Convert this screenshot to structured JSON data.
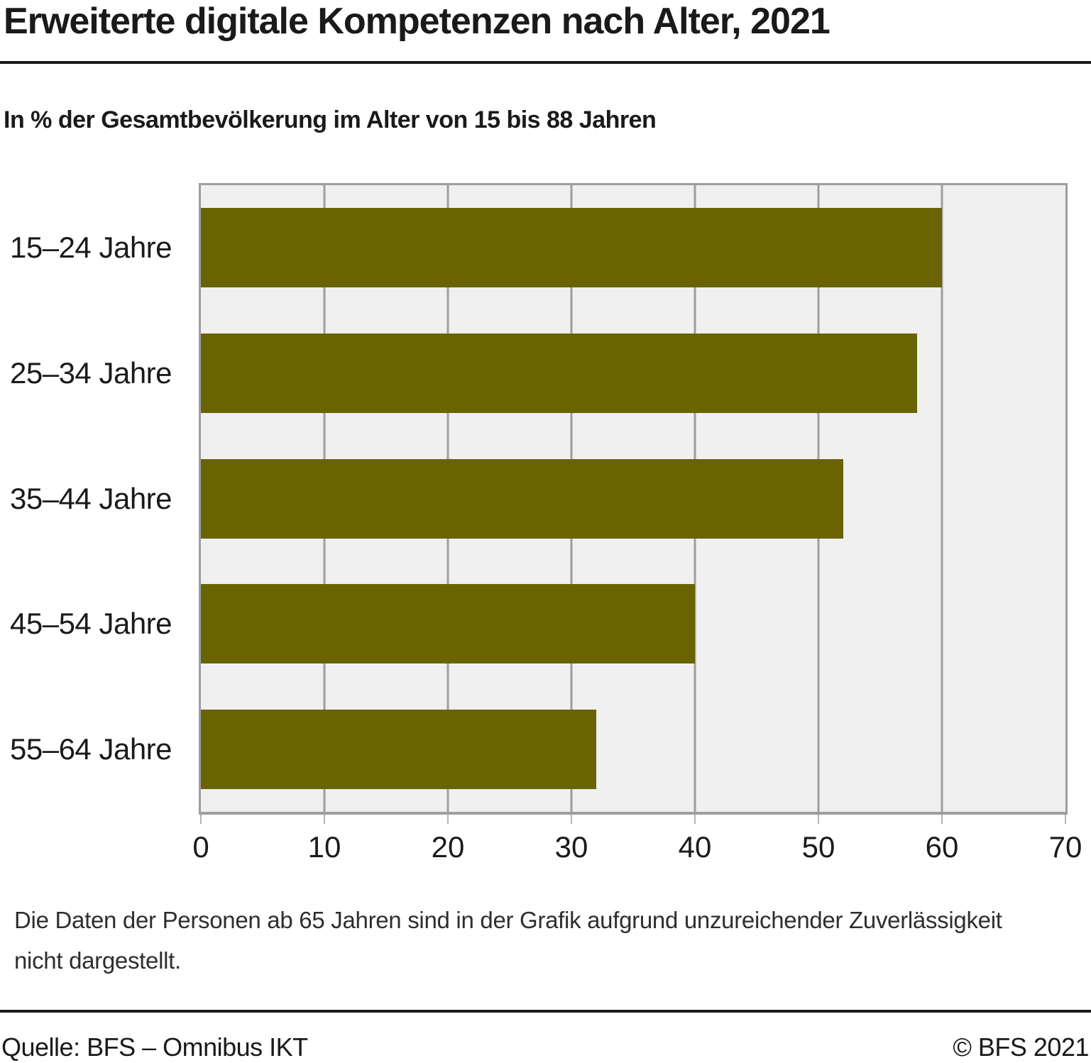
{
  "title": "Erweiterte digitale Kompetenzen nach Alter, 2021",
  "subtitle": "In % der Gesamtbevölkerung im Alter von 15 bis 88 Jahren",
  "chart_data": {
    "type": "bar",
    "orientation": "horizontal",
    "title": "Erweiterte digitale Kompetenzen nach Alter, 2021",
    "subtitle": "In % der Gesamtbevölkerung im Alter von 15 bis 88 Jahren",
    "categories": [
      "15–24 Jahre",
      "25–34 Jahre",
      "35–44 Jahre",
      "45–54 Jahre",
      "55–64 Jahre"
    ],
    "values": [
      60,
      58,
      52,
      40,
      32
    ],
    "xlabel": "",
    "ylabel": "",
    "xlim": [
      0,
      70
    ],
    "xticks": [
      0,
      10,
      20,
      30,
      40,
      50,
      60,
      70
    ],
    "grid": true,
    "legend": "none",
    "bar_color": "#696302",
    "plot_background": "#f0f0f0",
    "grid_color": "#9e9e9e",
    "tick_color": "#b4b4b4"
  },
  "footnote": {
    "line1": "Die Daten der Personen ab 65 Jahren sind in der Grafik aufgrund unzureichender Zuverlässigkeit",
    "line2": "nicht dargestellt."
  },
  "footer": {
    "source": "Quelle: BFS – Omnibus IKT",
    "copyright": "© BFS 2021"
  }
}
